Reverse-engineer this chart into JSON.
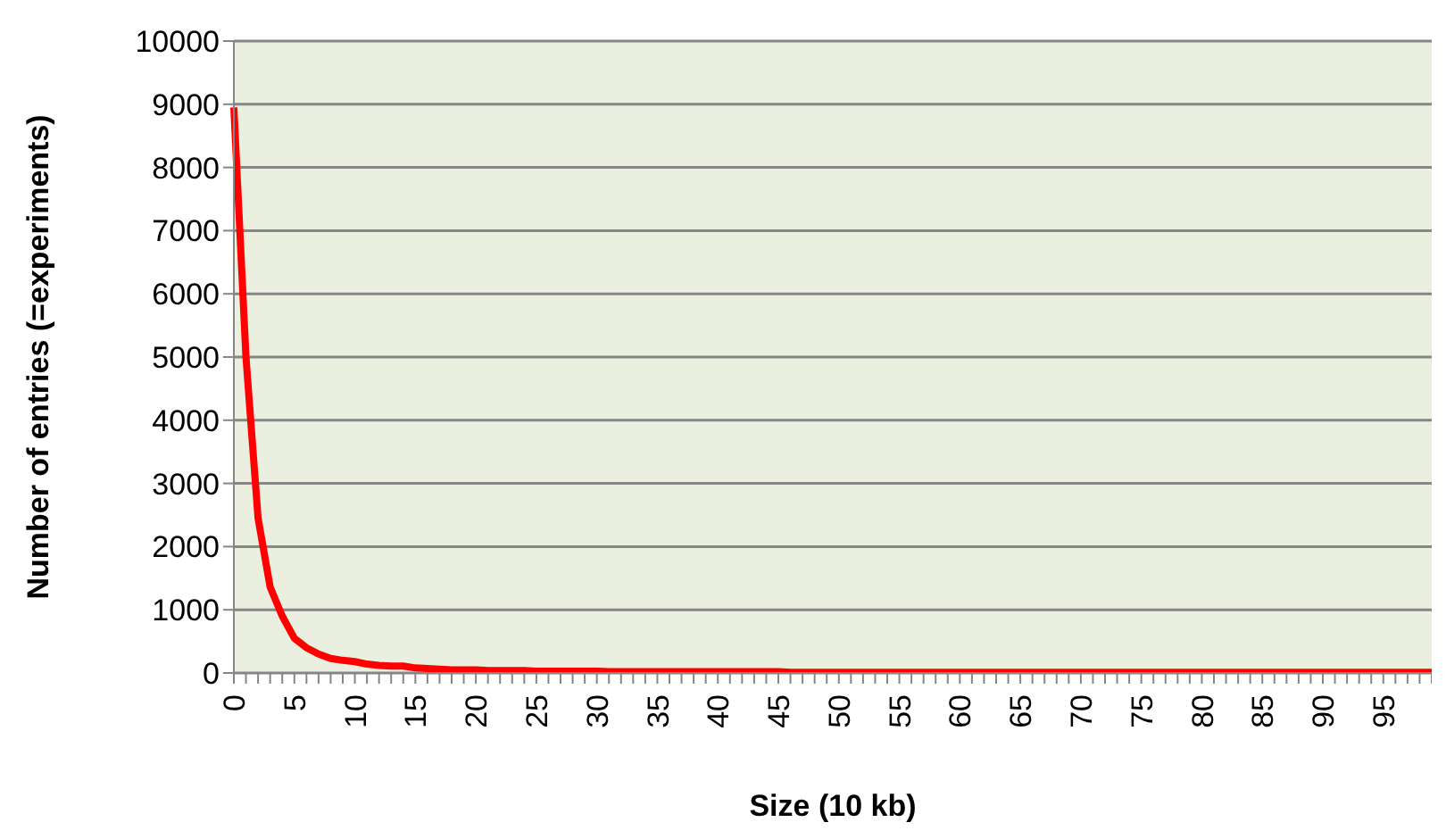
{
  "chart_data": {
    "type": "line",
    "xlabel": "Size (10 kb)",
    "ylabel": "Number of entries (=experiments)",
    "categories": [
      "0",
      null,
      null,
      null,
      null,
      "5",
      null,
      null,
      null,
      null,
      "10",
      null,
      null,
      null,
      null,
      "15",
      null,
      null,
      null,
      null,
      "20",
      null,
      null,
      null,
      null,
      "25",
      null,
      null,
      null,
      null,
      "30",
      null,
      null,
      null,
      null,
      "35",
      null,
      null,
      null,
      null,
      "40",
      null,
      null,
      null,
      null,
      "45",
      null,
      null,
      null,
      null,
      "50",
      null,
      null,
      null,
      null,
      "55",
      null,
      null,
      null,
      null,
      "60",
      null,
      null,
      null,
      null,
      "65",
      null,
      null,
      null,
      null,
      "70",
      null,
      null,
      null,
      null,
      "75",
      null,
      null,
      null,
      null,
      "80",
      null,
      null,
      null,
      null,
      "85",
      null,
      null,
      null,
      null,
      "90",
      null,
      null,
      null,
      null,
      "95",
      null,
      null,
      null,
      null
    ],
    "series": [
      {
        "color": "#ff0000",
        "values": [
          8950,
          5000,
          2450,
          1360,
          900,
          550,
          400,
          300,
          230,
          200,
          180,
          140,
          120,
          110,
          110,
          80,
          70,
          60,
          50,
          50,
          50,
          40,
          40,
          40,
          40,
          30,
          30,
          30,
          30,
          30,
          30,
          20,
          20,
          20,
          20,
          20,
          20,
          20,
          20,
          20,
          20,
          20,
          20,
          20,
          20,
          20,
          10,
          10,
          10,
          10,
          10,
          10,
          10,
          10,
          10,
          10,
          10,
          10,
          10,
          10,
          10,
          10,
          10,
          10,
          10,
          10,
          10,
          10,
          10,
          10,
          10,
          10,
          10,
          10,
          10,
          10,
          10,
          10,
          10,
          10,
          10,
          10,
          10,
          10,
          10,
          10,
          10,
          10,
          10,
          10,
          10,
          10,
          10,
          10,
          10,
          10,
          10,
          10,
          10,
          10
        ]
      }
    ],
    "ylim": [
      0,
      10000
    ],
    "yticks": [
      0,
      1000,
      2000,
      3000,
      4000,
      5000,
      6000,
      7000,
      8000,
      9000,
      10000
    ],
    "grid": "y",
    "marker": "none",
    "line_style": "solid"
  }
}
